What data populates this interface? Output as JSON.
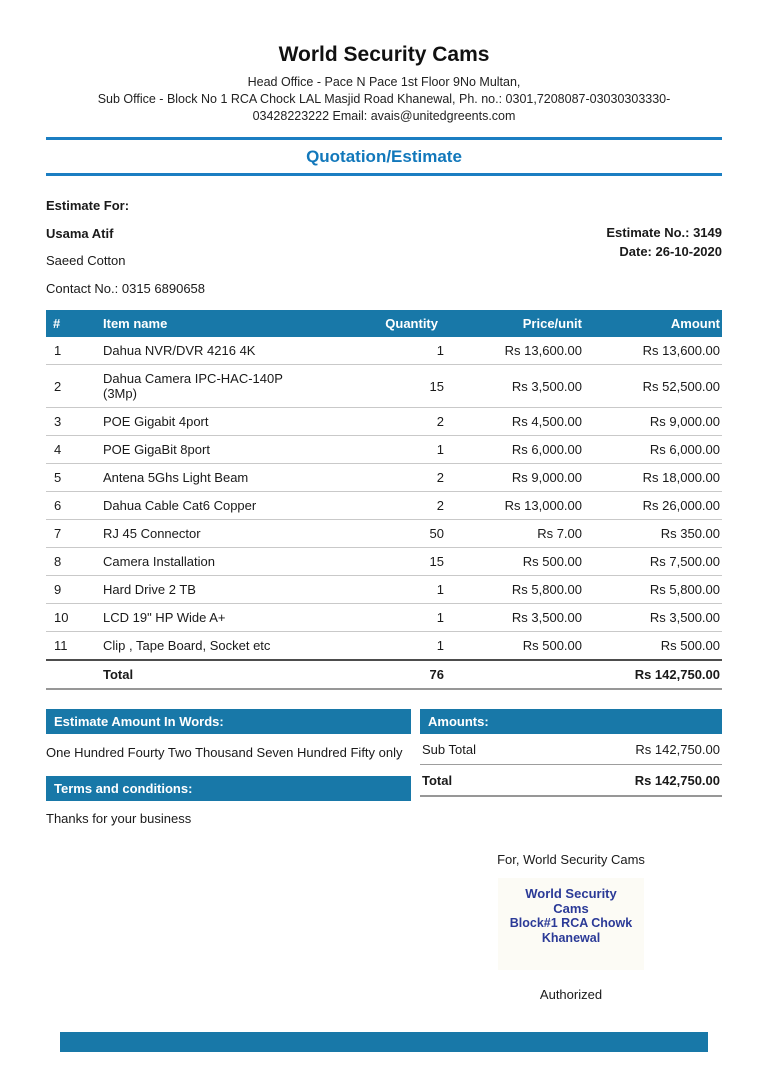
{
  "header": {
    "company_name": "World Security Cams",
    "address_line1": "Head Office - Pace N Pace 1st Floor 9No Multan,",
    "address_line2": "Sub Office - Block No 1 RCA Chock LAL Masjid Road Khanewal, Ph. no.: 0301,7208087-03030303330-",
    "address_line3": "03428223222 Email: avais@unitedgreents.com",
    "doc_title": "Quotation/Estimate"
  },
  "customer": {
    "section_label": "Estimate For:",
    "name": "Usama Atif",
    "company": "Saeed Cotton",
    "contact": "Contact No.: 0315 6890658",
    "estimate_no": "Estimate No.: 3149",
    "date": "Date: 26-10-2020"
  },
  "items_table": {
    "headers": [
      "#",
      "Item name",
      "Quantity",
      "Price/unit",
      "Amount"
    ],
    "rows": [
      [
        "1",
        "Dahua NVR/DVR 4216 4K",
        "1",
        "Rs 13,600.00",
        "Rs 13,600.00"
      ],
      [
        "2",
        "Dahua Camera IPC-HAC-140P (3Mp)",
        "15",
        "Rs 3,500.00",
        "Rs 52,500.00"
      ],
      [
        "3",
        "POE Gigabit 4port",
        "2",
        "Rs 4,500.00",
        "Rs 9,000.00"
      ],
      [
        "4",
        "POE GigaBit 8port",
        "1",
        "Rs 6,000.00",
        "Rs 6,000.00"
      ],
      [
        "5",
        "Antena 5Ghs Light Beam",
        "2",
        "Rs 9,000.00",
        "Rs 18,000.00"
      ],
      [
        "6",
        "Dahua Cable Cat6 Copper",
        "2",
        "Rs 13,000.00",
        "Rs 26,000.00"
      ],
      [
        "7",
        "RJ 45 Connector",
        "50",
        "Rs 7.00",
        "Rs 350.00"
      ],
      [
        "8",
        "Camera Installation",
        "15",
        "Rs 500.00",
        "Rs 7,500.00"
      ],
      [
        "9",
        "Hard Drive 2 TB",
        "1",
        "Rs 5,800.00",
        "Rs 5,800.00"
      ],
      [
        "10",
        "LCD 19\" HP Wide A+",
        "1",
        "Rs 3,500.00",
        "Rs 3,500.00"
      ],
      [
        "11",
        "Clip , Tape Board, Socket etc",
        "1",
        "Rs 500.00",
        "Rs 500.00"
      ]
    ],
    "total": {
      "label": "Total",
      "quantity": "76",
      "amount": "Rs 142,750.00"
    }
  },
  "amount_in_words": {
    "header": "Estimate Amount In Words:",
    "text": "One Hundred Fourty Two Thousand Seven Hundred Fifty only"
  },
  "terms": {
    "header": "Terms and conditions:",
    "text": "Thanks for your business"
  },
  "amounts": {
    "header": "Amounts:",
    "rows": [
      {
        "label": "Sub Total",
        "value": "Rs 142,750.00"
      },
      {
        "label": "Total",
        "value": "Rs 142,750.00"
      }
    ]
  },
  "signature": {
    "for_line": "For, World Security Cams",
    "stamp_line1": "World Security Cams",
    "stamp_line2": "Block#1 RCA Chowk",
    "stamp_line3": "Khanewal",
    "authorized_label": "Authorized"
  },
  "colors": {
    "bar_blue": "#1878a8",
    "rule_blue": "#1b7ec2",
    "doc_title_blue": "#1278bb",
    "stamp_navy": "#2b3a97",
    "stamp_bg": "#fcfbf5"
  }
}
